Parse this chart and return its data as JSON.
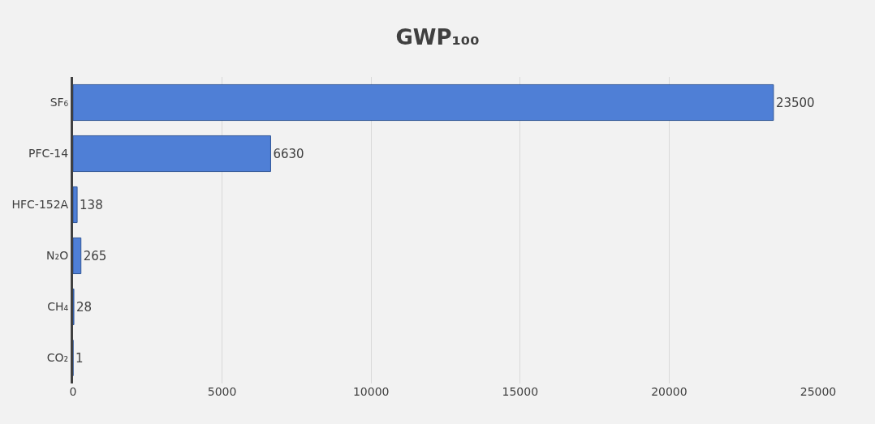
{
  "chart_data": {
    "type": "bar",
    "orientation": "horizontal",
    "title": "GWP₁₀₀",
    "categories": [
      "SF₆",
      "PFC-14",
      "HFC-152A",
      "N₂O",
      "CH₄",
      "CO₂"
    ],
    "values": [
      23500,
      6630,
      138,
      265,
      28,
      1
    ],
    "color": "#4f7fd6",
    "xlim": [
      0,
      25000
    ],
    "xticks": [
      0,
      5000,
      10000,
      15000,
      20000,
      25000
    ],
    "grid": "x",
    "data_labels": true
  }
}
